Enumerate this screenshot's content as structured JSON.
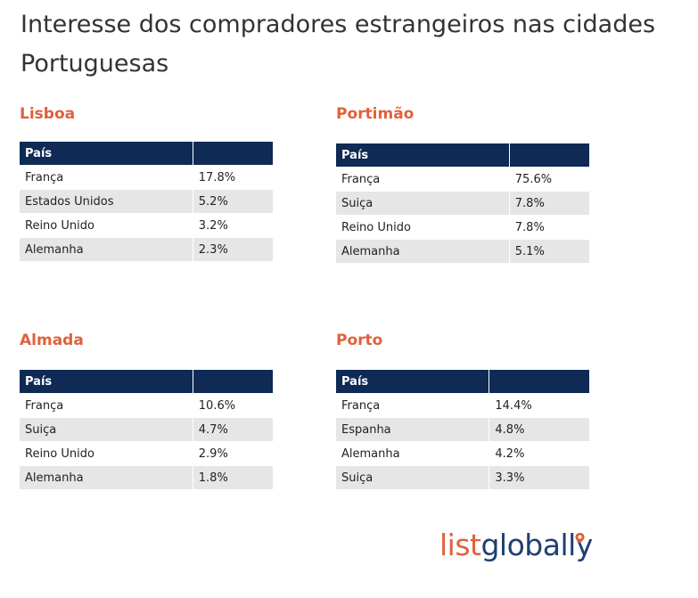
{
  "title": "Interesse dos compradores estrangeiros nas cidades Portuguesas",
  "logo": {
    "part1": "list",
    "part2": "globally"
  },
  "colors": {
    "accent": "#e0603a",
    "header_bg": "#0e2a55",
    "row_alt": "#e6e6e6"
  },
  "chart_data": [
    {
      "type": "table",
      "title": "Lisboa",
      "columns": [
        "País",
        ""
      ],
      "rows": [
        [
          "França",
          "17.8%"
        ],
        [
          "Estados Unidos",
          "5.2%"
        ],
        [
          "Reino Unido",
          "3.2%"
        ],
        [
          "Alemanha",
          "2.3%"
        ]
      ]
    },
    {
      "type": "table",
      "title": "Portimão",
      "columns": [
        "País",
        ""
      ],
      "rows": [
        [
          "França",
          "75.6%"
        ],
        [
          "Suiça",
          "7.8%"
        ],
        [
          "Reino Unido",
          "7.8%"
        ],
        [
          "Alemanha",
          "5.1%"
        ]
      ]
    },
    {
      "type": "table",
      "title": "Almada",
      "columns": [
        "País",
        ""
      ],
      "rows": [
        [
          "França",
          "10.6%"
        ],
        [
          "Suiça",
          "4.7%"
        ],
        [
          "Reino Unido",
          "2.9%"
        ],
        [
          "Alemanha",
          "1.8%"
        ]
      ]
    },
    {
      "type": "table",
      "title": "Porto",
      "columns": [
        "País",
        ""
      ],
      "rows": [
        [
          "França",
          "14.4%"
        ],
        [
          "Espanha",
          "4.8%"
        ],
        [
          "Alemanha",
          "4.2%"
        ],
        [
          "Suiça",
          "3.3%"
        ]
      ]
    }
  ]
}
